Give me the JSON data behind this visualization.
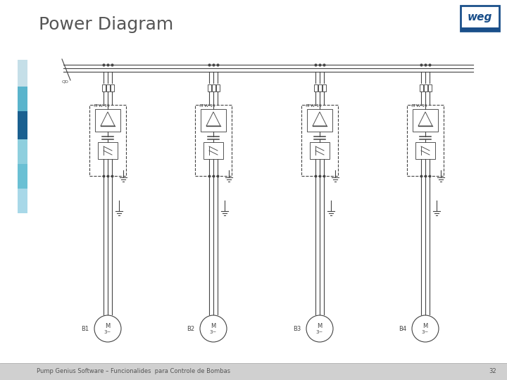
{
  "title": "Power Diagram",
  "footer_text": "Pump Genius Software – Funcionalides  para Controle de Bombas",
  "page_number": "32",
  "bg_color": "#ffffff",
  "footer_bg": "#d0d0d0",
  "sidebar_colors": [
    "#b8dce8",
    "#5ab4cc",
    "#1a6090",
    "#8ecfde",
    "#6ac0d4",
    "#a8d8e8"
  ],
  "weg_border": "#1a4f8a",
  "drive_labels": [
    "CFW-11",
    "CFW-11",
    "CFW-11",
    "CFW-11"
  ],
  "bus_labels": [
    "B1",
    "B2",
    "B3",
    "B4"
  ],
  "diagram_color": "#444444",
  "diagram_linewidth": 0.8
}
